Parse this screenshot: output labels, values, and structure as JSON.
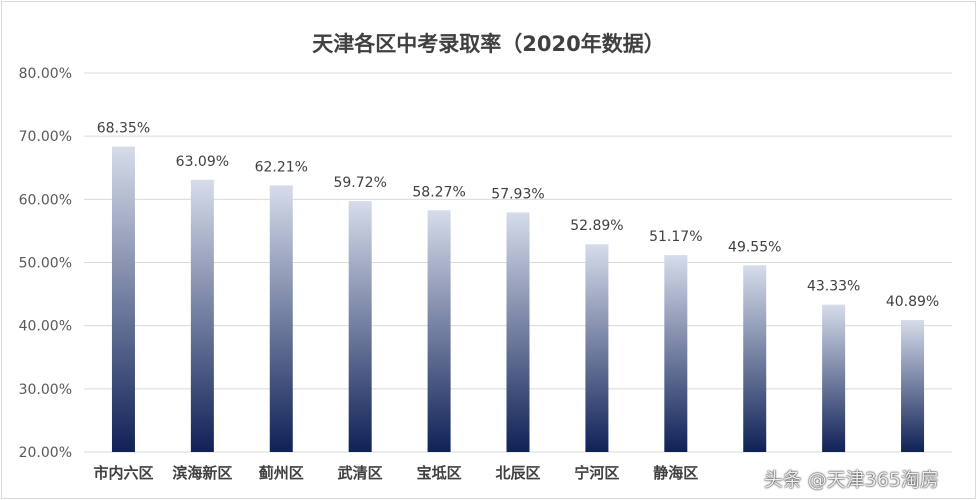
{
  "chart_data": {
    "type": "bar",
    "title": "天津各区中考录取率（2020年数据）",
    "categories": [
      "市内六区",
      "滨海新区",
      "蓟州区",
      "武清区",
      "宝坻区",
      "北辰区",
      "宁河区",
      "静海区",
      "",
      "",
      ""
    ],
    "values": [
      68.35,
      63.09,
      62.21,
      59.72,
      58.27,
      57.93,
      52.89,
      51.17,
      49.55,
      43.33,
      40.89
    ],
    "data_labels": [
      "68.35%",
      "63.09%",
      "62.21%",
      "59.72%",
      "58.27%",
      "57.93%",
      "52.89%",
      "51.17%",
      "49.55%",
      "43.33%",
      "40.89%"
    ],
    "ylim": [
      20,
      80
    ],
    "yticks": [
      "20.00%",
      "30.00%",
      "40.00%",
      "50.00%",
      "60.00%",
      "70.00%",
      "80.00%"
    ],
    "grid": true,
    "bar_gradient": {
      "top": "#d6dcea",
      "bottom": "#0f2156"
    },
    "gridline_color": "#d9d9d9"
  },
  "watermark": "头条 @天津365淘房"
}
